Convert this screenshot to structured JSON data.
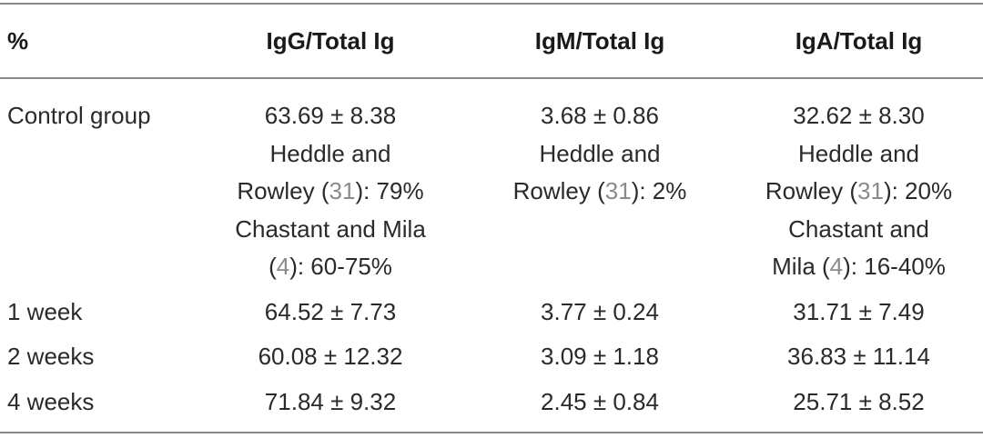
{
  "table": {
    "headers": [
      "%",
      "IgG/Total Ig",
      "IgM/Total Ig",
      "IgA/Total Ig"
    ],
    "control": {
      "label": "Control group",
      "igg": {
        "value": "63.69 ± 8.38",
        "l1": "Heddle and",
        "l2a": "Rowley (",
        "l2ref": "31",
        "l2b": "): 79%",
        "l3": "Chastant and Mila",
        "l4a": "(",
        "l4ref": "4",
        "l4b": "): 60-75%"
      },
      "igm": {
        "value": "3.68 ± 0.86",
        "l1": "Heddle and",
        "l2a": "Rowley (",
        "l2ref": "31",
        "l2b": "): 2%"
      },
      "iga": {
        "value": "32.62 ± 8.30",
        "l1": "Heddle and",
        "l2a": "Rowley (",
        "l2ref": "31",
        "l2b": "): 20%",
        "l3": "Chastant and",
        "l4a": "Mila (",
        "l4ref": "4",
        "l4b": "): 16-40%"
      }
    },
    "rows": [
      {
        "label": "1 week",
        "igg": "64.52 ± 7.73",
        "igm": "3.77 ± 0.24",
        "iga": "31.71 ± 7.49"
      },
      {
        "label": "2 weeks",
        "igg": "60.08 ± 12.32",
        "igm": "3.09 ± 1.18",
        "iga": "36.83 ± 11.14"
      },
      {
        "label": "4 weeks",
        "igg": "71.84 ± 9.32",
        "igm": "2.45 ± 0.84",
        "iga": "25.71 ± 8.52"
      }
    ]
  }
}
